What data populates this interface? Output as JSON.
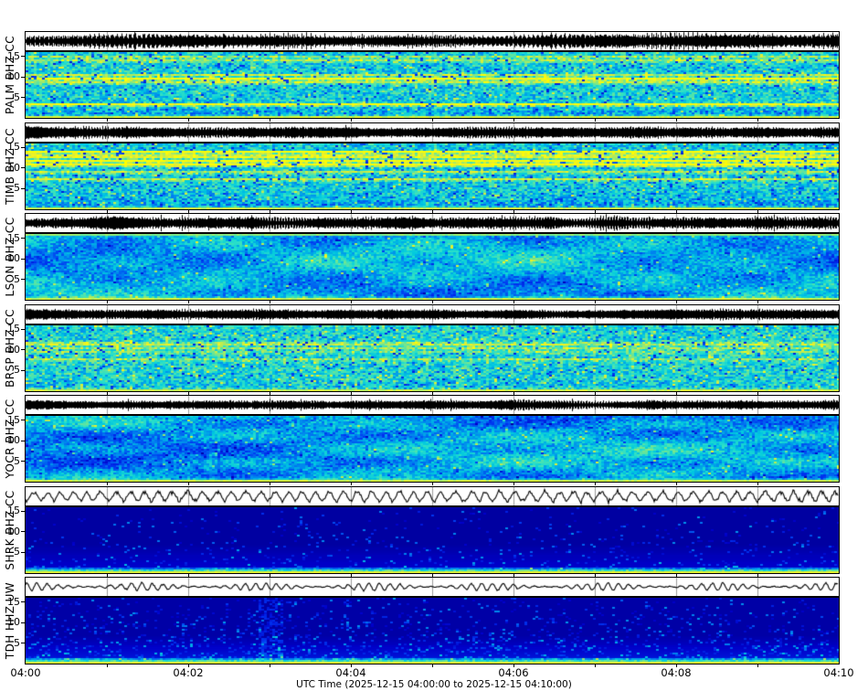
{
  "figure": {
    "background": "#ffffff",
    "xlabel": "UTC Time (2025-12-15 04:00:00 to 2025-12-15 04:10:00)",
    "xtick_labels": [
      "04:00",
      "04:02",
      "04:04",
      "04:06",
      "04:08",
      "04:10"
    ],
    "ytick_labels": [
      "15",
      "10",
      "5"
    ]
  },
  "chart_data": {
    "type": "heatmap",
    "subtype": "seismic waveform traces with spectrograms, 7 stacked station panels",
    "title": "",
    "x_axis": {
      "label": "UTC Time (2025-12-15 04:00:00 to 2025-12-15 04:10:00)",
      "start": "2025-12-15 04:00:00",
      "end": "2025-12-15 04:10:00",
      "tick_labels": [
        "04:00",
        "04:02",
        "04:04",
        "04:06",
        "04:08",
        "04:10"
      ],
      "minor_gridline_every_minutes": 1
    },
    "y_axis": {
      "units": "Hz",
      "min_hz": 0,
      "max_hz": 16,
      "tick_labels": [
        "15",
        "10",
        "5"
      ]
    },
    "colormap": {
      "name": "jet",
      "stops": [
        [
          0,
          "#000080"
        ],
        [
          0.12,
          "#0000C8"
        ],
        [
          0.25,
          "#0033F0"
        ],
        [
          0.38,
          "#0080F0"
        ],
        [
          0.5,
          "#00C8E0"
        ],
        [
          0.6,
          "#2BE0C8"
        ],
        [
          0.72,
          "#8CE87B"
        ],
        [
          0.82,
          "#D6EE3C"
        ],
        [
          0.92,
          "#F4F41E"
        ],
        [
          1,
          "#FFFF00"
        ]
      ]
    },
    "trace_color": "#000000",
    "minute_grid_color": "#9a9a9a",
    "stations": [
      {
        "label": "PALM BHZ CC",
        "station": "PALM",
        "channel": "BHZ",
        "network": "CC",
        "waveform": {
          "kind": "filled",
          "description": "dense black trace, strong spindle-shaped amplitude bursts",
          "amin": 2,
          "amax": 9.5,
          "smooth": 22,
          "gamma": 1.3,
          "spike": 0.008,
          "seed": 101
        },
        "spectrogram": {
          "style": "bright",
          "description": "cyan field with yellow-green horizontal bands, dark blue speckles, darker bottom third, yellow-green base line",
          "base": 0.53,
          "bands": 8,
          "boost": 0.24,
          "dark_speckle": 0.05,
          "bright_speckle": 0.05,
          "dark_bottom": 0.12,
          "bottom_streak": true,
          "top_streak": false,
          "seed": 201
        }
      },
      {
        "label": "TIMB BHZ CC",
        "station": "TIMB",
        "channel": "BHZ",
        "network": "CC",
        "waveform": {
          "kind": "filled",
          "description": "dense near-constant-amplitude black trace",
          "amin": 3.2,
          "amax": 6.4,
          "smooth": 15,
          "gamma": 1.0,
          "spike": 0.004,
          "seed": 102
        },
        "spectrogram": {
          "style": "bright",
          "description": "cyan field with many strong yellow horizontal bands, darker bottom",
          "base": 0.52,
          "bands": 10,
          "boost": 0.27,
          "dark_speckle": 0.06,
          "bright_speckle": 0.05,
          "dark_bottom": 0.12,
          "bottom_streak": true,
          "top_streak": false,
          "seed": 202
        }
      },
      {
        "label": "LSON BHZ CC",
        "station": "LSON",
        "channel": "BHZ",
        "network": "CC",
        "waveform": {
          "kind": "filled",
          "description": "spiky moderate-amplitude trace with bursts",
          "amin": 2.2,
          "amax": 7.5,
          "smooth": 12,
          "gamma": 1.1,
          "spike": 0.02,
          "seed": 103
        },
        "spectrogram": {
          "style": "blotchy",
          "description": "blotchy blue/cyan field, yellow-green streaks at top and bottom edges",
          "base": 0.45,
          "blotch": 0.09,
          "jitter": 0.22,
          "dark_speckle": 0.04,
          "bright_speckle": 0.02,
          "bottom_streak": true,
          "top_streak": true,
          "seed": 203
        }
      },
      {
        "label": "BRSP BHZ CC",
        "station": "BRSP",
        "channel": "BHZ",
        "network": "CC",
        "waveform": {
          "kind": "filled",
          "description": "dense moderate-amplitude black trace",
          "amin": 2.8,
          "amax": 5.8,
          "smooth": 14,
          "gamma": 1.0,
          "spike": 0.004,
          "seed": 104
        },
        "spectrogram": {
          "style": "bright",
          "description": "fairly uniform cyan-green field with mild yellow patches",
          "base": 0.55,
          "bands": 5,
          "boost": 0.16,
          "dark_speckle": 0.05,
          "bright_speckle": 0.06,
          "dark_bottom": 0.06,
          "bottom_streak": true,
          "top_streak": false,
          "seed": 204
        }
      },
      {
        "label": "YOCR BHZ CC",
        "station": "YOCR",
        "channel": "BHZ",
        "network": "CC",
        "waveform": {
          "kind": "filled",
          "description": "thin trace with occasional bursts",
          "amin": 1.8,
          "amax": 5.4,
          "smooth": 12,
          "gamma": 1.1,
          "spike": 0.02,
          "seed": 105
        },
        "spectrogram": {
          "style": "blotchy",
          "description": "blotchy darker blue/cyan field, yellow-green base line",
          "base": 0.43,
          "blotch": 0.1,
          "jitter": 0.22,
          "dark_speckle": 0.05,
          "bright_speckle": 0.02,
          "bottom_streak": true,
          "top_streak": false,
          "seed": 205
        }
      },
      {
        "label": "SHRK BHZ CC",
        "station": "SHRK",
        "channel": "BHZ",
        "network": "CC",
        "waveform": {
          "kind": "line",
          "description": "thin irregular oscillating line, variable amplitude",
          "k": 0.4,
          "kjitter": 0.9,
          "a0": 2,
          "a1": 6.5,
          "seed": 106
        },
        "spectrogram": {
          "style": "dark",
          "description": "near-uniform dark navy, faint blue speckle in lower third, bright cyan then yellow-green lines at base",
          "base": 0.055,
          "glow": 0.6,
          "speckle": 0.1,
          "bottom_streak": true,
          "seed": 206
        }
      },
      {
        "label": "TDH HHZ UW",
        "station": "TDH",
        "channel": "HHZ",
        "network": "UW",
        "waveform": {
          "kind": "line",
          "description": "regular quasi-periodic oscillation, amplitude-modulated",
          "k": 0.55,
          "kjitter": 0.25,
          "a0": 2.2,
          "a1": 3.2,
          "mod": 0.05,
          "seed": 107
        },
        "spectrogram": {
          "style": "dark",
          "description": "dark navy with blue speckles throughout, brighter lower third, bright vertical band near 04:01, cyan/yellow base lines",
          "base": 0.06,
          "glow": 0.9,
          "speckle": 0.22,
          "column": 0.3,
          "bottom_streak": true,
          "seed": 207
        }
      }
    ]
  }
}
